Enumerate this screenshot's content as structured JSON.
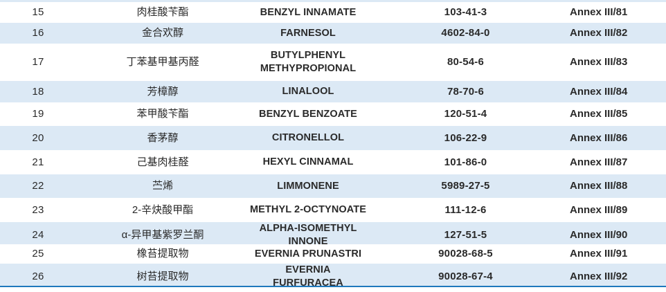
{
  "colors": {
    "row_stripe": "#dce9f5",
    "bottom_rule": "#1e78bd",
    "text": "#2a2a2a"
  },
  "table": {
    "rows": [
      {
        "no": "15",
        "cn": "肉桂酸苄酯",
        "en": "BENZYL INNAMATE",
        "cas": "103-41-3",
        "annex": "Annex III/81"
      },
      {
        "no": "16",
        "cn": "金合欢醇",
        "en": "FARNESOL",
        "cas": "4602-84-0",
        "annex": "Annex III/82"
      },
      {
        "no": "17",
        "cn": "丁苯基甲基丙醛",
        "en": "BUTYLPHENYL METHYPROPIONAL",
        "cas": "80-54-6",
        "annex": "Annex III/83"
      },
      {
        "no": "18",
        "cn": "芳樟醇",
        "en": "LINALOOL",
        "cas": "78-70-6",
        "annex": "Annex III/84"
      },
      {
        "no": "19",
        "cn": "苯甲酸苄酯",
        "en": "BENZYL BENZOATE",
        "cas": "120-51-4",
        "annex": "Annex III/85"
      },
      {
        "no": "20",
        "cn": "香茅醇",
        "en": "CITRONELLOL",
        "cas": "106-22-9",
        "annex": "Annex III/86"
      },
      {
        "no": "21",
        "cn": "己基肉桂醛",
        "en": "HEXYL CINNAMAL",
        "cas": "101-86-0",
        "annex": "Annex III/87"
      },
      {
        "no": "22",
        "cn": "苎烯",
        "en": "LIMMONENE",
        "cas": "5989-27-5",
        "annex": "Annex III/88"
      },
      {
        "no": "23",
        "cn": "2-辛炔酸甲酯",
        "en": "METHYL 2-OCTYNOATE",
        "cas": "111-12-6",
        "annex": "Annex III/89"
      },
      {
        "no": "24",
        "cn": "α-异甲基紫罗兰酮",
        "en": "ALPHA-ISOMETHYL INNONE",
        "cas": "127-51-5",
        "annex": "Annex III/90"
      },
      {
        "no": "25",
        "cn": "橡苔提取物",
        "en": "EVERNIA PRUNASTRI",
        "cas": "90028-68-5",
        "annex": "Annex III/91"
      },
      {
        "no": "26",
        "cn": "树苔提取物",
        "en": "EVERNIA FURFURACEA",
        "cas": "90028-67-4",
        "annex": "Annex III/92"
      }
    ]
  }
}
